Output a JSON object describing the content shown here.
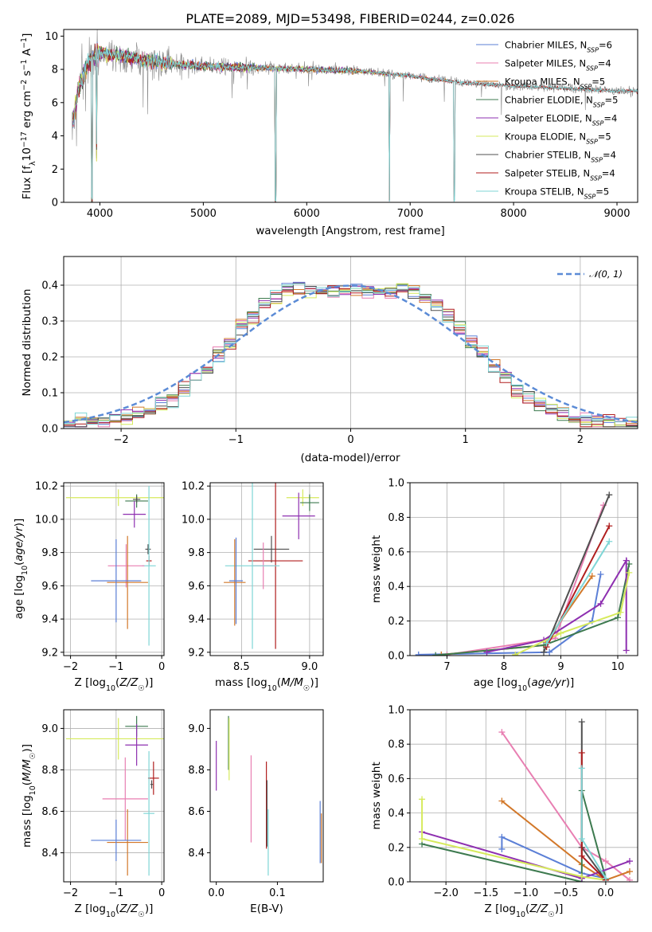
{
  "figure": {
    "title": "PLATE=2089, MJD=53498, FIBERID=0244, z=0.026",
    "palette": {
      "Chabrier MILES": "#5b7fd6",
      "Salpeter MILES": "#e87fb2",
      "Kroupa MILES": "#d2782a",
      "Chabrier ELODIE": "#3d7a4f",
      "Salpeter ELODIE": "#8e2fb0",
      "Kroupa ELODIE": "#d6ea5c",
      "Chabrier STELIB": "#505050",
      "Salpeter STELIB": "#b01e1e",
      "Kroupa STELIB": "#7fd6d6",
      "data": "#8a8a8a"
    }
  },
  "chart_data": [
    {
      "id": "spectrum",
      "type": "line",
      "title": "PLATE=2089, MJD=53498, FIBERID=0244, z=0.026",
      "xlabel": "wavelength [Angstrom, rest frame]",
      "ylabel": "Flux [f_λ10^-17 erg cm^-2 s^-1 A^-1]",
      "xlim": [
        3650,
        9200
      ],
      "ylim": [
        0,
        10.4
      ],
      "xticks": [
        4000,
        5000,
        6000,
        7000,
        8000,
        9000
      ],
      "yticks": [
        0,
        2,
        4,
        6,
        8,
        10
      ],
      "grid": false,
      "legend_position": "top-right",
      "legend": [
        {
          "name": "Chabrier MILES",
          "nssp": "6"
        },
        {
          "name": "Salpeter MILES",
          "nssp": "4"
        },
        {
          "name": "Kroupa MILES",
          "nssp": "5"
        },
        {
          "name": "Chabrier ELODIE",
          "nssp": "5"
        },
        {
          "name": "Salpeter ELODIE",
          "nssp": "4"
        },
        {
          "name": "Kroupa ELODIE",
          "nssp": "5"
        },
        {
          "name": "Chabrier STELIB",
          "nssp": "4"
        },
        {
          "name": "Salpeter STELIB",
          "nssp": "4"
        },
        {
          "name": "Kroupa STELIB",
          "nssp": "5"
        }
      ],
      "continuum": {
        "x": [
          3730,
          3800,
          3900,
          4000,
          4100,
          4300,
          4600,
          5000,
          5500,
          6000,
          6500,
          7000,
          7500,
          8000,
          8500,
          9000
        ],
        "y": [
          4.5,
          7.0,
          8.6,
          9.0,
          8.9,
          8.7,
          8.4,
          8.2,
          8.1,
          8.0,
          7.9,
          7.6,
          7.2,
          7.0,
          6.85,
          6.7
        ]
      },
      "model_xrange": {
        "Chabrier MILES": [
          3740,
          7410
        ],
        "Salpeter MILES": [
          3740,
          7410
        ],
        "Kroupa MILES": [
          3740,
          7410
        ],
        "Chabrier ELODIE": [
          3740,
          6800
        ],
        "Salpeter ELODIE": [
          3740,
          6800
        ],
        "Kroupa ELODIE": [
          3740,
          6800
        ],
        "Chabrier STELIB": [
          3740,
          9200
        ],
        "Salpeter STELIB": [
          3740,
          9200
        ],
        "Kroupa STELIB": [
          3740,
          9200
        ]
      },
      "model_dips": [
        {
          "x": 3925,
          "depth": 8.6
        },
        {
          "x": 3968,
          "depth": 6.0
        },
        {
          "x": 5700,
          "depth": 8.0
        },
        {
          "x": 6800,
          "depth": 7.6
        },
        {
          "x": 7425,
          "depth": 7.2
        }
      ]
    },
    {
      "id": "residuals",
      "type": "line",
      "xlabel": "(data-model)/error",
      "ylabel": "Normed distribution",
      "xlim": [
        -2.5,
        2.5
      ],
      "ylim": [
        0,
        0.48
      ],
      "xticks": [
        -2,
        -1,
        0,
        1,
        2
      ],
      "yticks": [
        0.0,
        0.1,
        0.2,
        0.3,
        0.4
      ],
      "grid": true,
      "legend_position": "top-right",
      "legend": [
        {
          "name": "𝒩(0, 1)"
        }
      ],
      "bin_width": 0.1
    },
    {
      "id": "age_vs_Z",
      "type": "scatter",
      "xlabel": "Z [log10(Z/Z☉)]",
      "ylabel": "age [log10(age/yr)]",
      "xlim": [
        -2.15,
        0.05
      ],
      "ylim": [
        9.18,
        10.22
      ],
      "xticks": [
        -2,
        -1,
        0
      ],
      "yticks": [
        9.2,
        9.4,
        9.6,
        9.8,
        10.0,
        10.2
      ],
      "grid": true,
      "points": [
        {
          "series": "Kroupa ELODIE",
          "x": -0.95,
          "xerr": 1.15,
          "y": 10.13,
          "yerr": 0.05
        },
        {
          "series": "Chabrier ELODIE",
          "x": -0.55,
          "xerr": 0.25,
          "y": 10.11,
          "yerr": 0.04
        },
        {
          "series": "Chabrier STELIB",
          "x": -0.55,
          "xerr": 0.08,
          "y": 10.12,
          "yerr": 0.02
        },
        {
          "series": "Salpeter ELODIE",
          "x": -0.6,
          "xerr": 0.25,
          "y": 10.03,
          "yerr": 0.08
        },
        {
          "series": "Chabrier STELIB",
          "x": -0.3,
          "xerr": 0.06,
          "y": 9.82,
          "yerr": 0.03
        },
        {
          "series": "Salpeter STELIB",
          "x": -0.28,
          "xerr": 0.06,
          "y": 9.75,
          "yerr": 0.03
        },
        {
          "series": "Kroupa STELIB",
          "x": -0.28,
          "xerr": 0.15,
          "y": 9.72,
          "yerr": 0.48
        },
        {
          "series": "Salpeter MILES",
          "x": -0.78,
          "xerr": 0.4,
          "y": 9.72,
          "yerr": 0.13
        },
        {
          "series": "Kroupa MILES",
          "x": -0.75,
          "xerr": 0.45,
          "y": 9.62,
          "yerr": 0.28
        },
        {
          "series": "Chabrier MILES",
          "x": -1.0,
          "xerr": 0.55,
          "y": 9.63,
          "yerr": 0.25
        }
      ]
    },
    {
      "id": "age_vs_mass",
      "type": "scatter",
      "xlabel": "mass [log10(M/M☉)]",
      "ylabel": "",
      "xlim": [
        8.27,
        9.1
      ],
      "ylim": [
        9.18,
        10.22
      ],
      "xticks": [
        8.5,
        9.0
      ],
      "yticks": [
        9.2,
        9.4,
        9.6,
        9.8,
        10.0,
        10.2
      ],
      "grid": true,
      "points": [
        {
          "series": "Kroupa ELODIE",
          "x": 8.95,
          "xerr": 0.12,
          "y": 10.13,
          "yerr": 0.05
        },
        {
          "series": "Chabrier ELODIE",
          "x": 9.0,
          "xerr": 0.07,
          "y": 10.1,
          "yerr": 0.05
        },
        {
          "series": "Salpeter ELODIE",
          "x": 8.92,
          "xerr": 0.12,
          "y": 10.02,
          "yerr": 0.14
        },
        {
          "series": "Chabrier STELIB",
          "x": 8.72,
          "xerr": 0.13,
          "y": 9.82,
          "yerr": 0.08
        },
        {
          "series": "Salpeter STELIB",
          "x": 8.75,
          "xerr": 0.2,
          "y": 9.75,
          "yerr": 0.53
        },
        {
          "series": "Salpeter MILES",
          "x": 8.66,
          "xerr": 0.08,
          "y": 9.72,
          "yerr": 0.14
        },
        {
          "series": "Kroupa STELIB",
          "x": 8.58,
          "xerr": 0.2,
          "y": 9.72,
          "yerr": 0.5
        },
        {
          "series": "Kroupa MILES",
          "x": 8.45,
          "xerr": 0.08,
          "y": 9.62,
          "yerr": 0.26
        },
        {
          "series": "Chabrier MILES",
          "x": 8.46,
          "xerr": 0.05,
          "y": 9.63,
          "yerr": 0.26
        }
      ]
    },
    {
      "id": "massweight_vs_age",
      "type": "line",
      "xlabel": "age [log10(age/yr)]",
      "ylabel": "mass weight",
      "xlim": [
        6.35,
        10.35
      ],
      "ylim": [
        0,
        1.0
      ],
      "xticks": [
        7,
        8,
        9,
        10
      ],
      "yticks": [
        0.0,
        0.2,
        0.4,
        0.6,
        0.8,
        1.0
      ],
      "grid": true,
      "series": [
        {
          "name": "Chabrier MILES",
          "points": [
            [
              6.5,
              0.005
            ],
            [
              8.8,
              0.02
            ],
            [
              9.55,
              0.2
            ],
            [
              9.7,
              0.47
            ]
          ]
        },
        {
          "name": "Salpeter MILES",
          "points": [
            [
              7.0,
              0.005
            ],
            [
              8.9,
              0.1
            ],
            [
              9.75,
              0.87
            ]
          ]
        },
        {
          "name": "Kroupa MILES",
          "points": [
            [
              6.9,
              0.005
            ],
            [
              8.7,
              0.06
            ],
            [
              9.55,
              0.46
            ]
          ]
        },
        {
          "name": "Chabrier ELODIE",
          "points": [
            [
              6.8,
              0.002
            ],
            [
              8.7,
              0.06
            ],
            [
              10.0,
              0.22
            ],
            [
              10.2,
              0.53
            ]
          ]
        },
        {
          "name": "Salpeter ELODIE",
          "points": [
            [
              7.7,
              0.02
            ],
            [
              8.7,
              0.09
            ],
            [
              9.7,
              0.3
            ],
            [
              10.15,
              0.55
            ],
            [
              10.15,
              0.03
            ]
          ]
        },
        {
          "name": "Kroupa ELODIE",
          "points": [
            [
              8.2,
              0.005
            ],
            [
              9.0,
              0.13
            ],
            [
              10.05,
              0.25
            ],
            [
              10.2,
              0.48
            ]
          ]
        },
        {
          "name": "Chabrier STELIB",
          "points": [
            [
              8.7,
              0.02
            ],
            [
              9.85,
              0.93
            ]
          ]
        },
        {
          "name": "Salpeter STELIB",
          "points": [
            [
              8.75,
              0.05
            ],
            [
              9.85,
              0.75
            ]
          ]
        },
        {
          "name": "Kroupa STELIB",
          "points": [
            [
              8.75,
              0.07
            ],
            [
              9.85,
              0.66
            ]
          ]
        }
      ]
    },
    {
      "id": "mass_vs_Z",
      "type": "scatter",
      "xlabel": "Z [log10(Z/Z☉)]",
      "ylabel": "mass [log10(M/M☉)]",
      "xlim": [
        -2.15,
        0.05
      ],
      "ylim": [
        8.26,
        9.09
      ],
      "xticks": [
        -2,
        -1,
        0
      ],
      "yticks": [
        8.4,
        8.6,
        8.8,
        9.0
      ],
      "grid": true,
      "points": [
        {
          "series": "Chabrier ELODIE",
          "x": -0.55,
          "xerr": 0.25,
          "y": 9.01,
          "yerr": 0.05
        },
        {
          "series": "Kroupa ELODIE",
          "x": -0.95,
          "xerr": 1.15,
          "y": 8.95,
          "yerr": 0.1
        },
        {
          "series": "Salpeter ELODIE",
          "x": -0.55,
          "xerr": 0.25,
          "y": 8.92,
          "yerr": 0.1
        },
        {
          "series": "Salpeter STELIB",
          "x": -0.18,
          "xerr": 0.12,
          "y": 8.76,
          "yerr": 0.08
        },
        {
          "series": "Chabrier STELIB",
          "x": -0.22,
          "xerr": 0.03,
          "y": 8.73,
          "yerr": 0.02
        },
        {
          "series": "Salpeter MILES",
          "x": -0.8,
          "xerr": 0.5,
          "y": 8.66,
          "yerr": 0.2
        },
        {
          "series": "Kroupa STELIB",
          "x": -0.28,
          "xerr": 0.12,
          "y": 8.59,
          "yerr": 0.3
        },
        {
          "series": "Kroupa MILES",
          "x": -0.75,
          "xerr": 0.45,
          "y": 8.45,
          "yerr": 0.16
        },
        {
          "series": "Chabrier MILES",
          "x": -1.0,
          "xerr": 0.55,
          "y": 8.46,
          "yerr": 0.1
        }
      ]
    },
    {
      "id": "mass_vs_ebv",
      "type": "scatter",
      "xlabel": "E(B-V)",
      "ylabel": "",
      "xlim": [
        -0.01,
        0.175
      ],
      "ylim": [
        8.26,
        9.09
      ],
      "xticks": [
        0.0,
        0.1
      ],
      "yticks": [
        8.4,
        8.6,
        8.8,
        9.0
      ],
      "grid": false,
      "points": [
        {
          "series": "Salpeter ELODIE",
          "x": 0.0,
          "y": 8.82,
          "yerr": 0.12
        },
        {
          "series": "Chabrier ELODIE",
          "x": 0.02,
          "y": 8.93,
          "yerr": 0.13
        },
        {
          "series": "Kroupa ELODIE",
          "x": 0.021,
          "y": 8.9,
          "yerr": 0.15
        },
        {
          "series": "Salpeter MILES",
          "x": 0.057,
          "y": 8.66,
          "yerr": 0.21
        },
        {
          "series": "Salpeter STELIB",
          "x": 0.082,
          "y": 8.63,
          "yerr": 0.21
        },
        {
          "series": "Chabrier STELIB",
          "x": 0.083,
          "y": 8.59,
          "yerr": 0.16
        },
        {
          "series": "Kroupa STELIB",
          "x": 0.085,
          "y": 8.45,
          "yerr": 0.16
        },
        {
          "series": "Chabrier MILES",
          "x": 0.17,
          "y": 8.5,
          "yerr": 0.15
        },
        {
          "series": "Kroupa MILES",
          "x": 0.172,
          "y": 8.47,
          "yerr": 0.12
        }
      ]
    },
    {
      "id": "massweight_vs_Z",
      "type": "line",
      "xlabel": "Z [log10(Z/Z☉)]",
      "ylabel": "mass weight",
      "xlim": [
        -2.45,
        0.4
      ],
      "ylim": [
        0,
        1.0
      ],
      "xticks": [
        -2.0,
        -1.5,
        -1.0,
        -0.5,
        0.0
      ],
      "yticks": [
        0.0,
        0.2,
        0.4,
        0.6,
        0.8,
        1.0
      ],
      "grid": true,
      "series": [
        {
          "name": "Chabrier MILES",
          "points": [
            [
              -1.3,
              0.19
            ],
            [
              -1.3,
              0.26
            ],
            [
              -0.3,
              0.05
            ],
            [
              0.0,
              0.02
            ]
          ]
        },
        {
          "name": "Salpeter MILES",
          "points": [
            [
              -1.3,
              0.87
            ],
            [
              -0.3,
              0.2
            ],
            [
              0.0,
              0.12
            ],
            [
              0.3,
              0.01
            ]
          ]
        },
        {
          "name": "Kroupa MILES",
          "points": [
            [
              -1.3,
              0.47
            ],
            [
              -0.3,
              0.1
            ],
            [
              0.0,
              0.01
            ],
            [
              0.3,
              0.06
            ]
          ]
        },
        {
          "name": "Chabrier ELODIE",
          "points": [
            [
              -2.3,
              0.22
            ],
            [
              -0.3,
              0.0
            ],
            [
              -0.3,
              0.53
            ],
            [
              0.0,
              0.02
            ]
          ]
        },
        {
          "name": "Salpeter ELODIE",
          "points": [
            [
              -2.3,
              0.29
            ],
            [
              -0.3,
              0.02
            ],
            [
              0.3,
              0.12
            ]
          ]
        },
        {
          "name": "Kroupa ELODIE",
          "points": [
            [
              -2.3,
              0.48
            ],
            [
              -2.3,
              0.25
            ],
            [
              -0.3,
              0.03
            ],
            [
              0.0,
              0.01
            ]
          ]
        },
        {
          "name": "Chabrier STELIB",
          "points": [
            [
              -0.3,
              0.93
            ],
            [
              -0.3,
              0.2
            ],
            [
              0.0,
              0.01
            ]
          ]
        },
        {
          "name": "Salpeter STELIB",
          "points": [
            [
              -0.3,
              0.75
            ],
            [
              -0.3,
              0.15
            ],
            [
              0.0,
              0.01
            ]
          ]
        },
        {
          "name": "Kroupa STELIB",
          "points": [
            [
              -0.3,
              0.66
            ],
            [
              -0.3,
              0.25
            ],
            [
              0.0,
              0.02
            ]
          ]
        }
      ]
    }
  ]
}
